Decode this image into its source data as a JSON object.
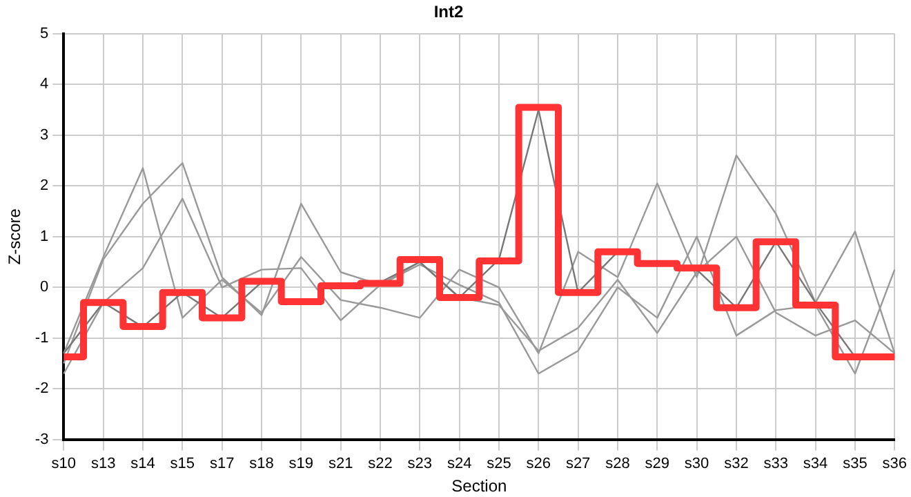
{
  "chart_data": {
    "type": "line",
    "title": "Int2",
    "xlabel": "Section",
    "ylabel": "Z-score",
    "categories": [
      "s10",
      "s13",
      "s14",
      "s15",
      "s17",
      "s18",
      "s19",
      "s21",
      "s22",
      "s23",
      "s24",
      "s25",
      "s26",
      "s27",
      "s28",
      "s29",
      "s30",
      "s32",
      "s33",
      "s34",
      "s35",
      "s36"
    ],
    "ylim": [
      -3,
      5
    ],
    "yticks": [
      -3,
      -2,
      -1,
      0,
      1,
      2,
      3,
      4,
      5
    ],
    "grid": true,
    "legend": false,
    "marker": "none",
    "series": [
      {
        "color": "#999999",
        "values": [
          -1.3,
          0.6,
          2.35,
          -0.6,
          0.15,
          -0.5,
          0.6,
          -0.25,
          -0.4,
          -0.6,
          0.35,
          0.0,
          -1.3,
          0.7,
          0.2,
          2.05,
          0.2,
          2.6,
          1.45,
          -0.3,
          1.1,
          -1.3
        ]
      },
      {
        "color": "#999999",
        "values": [
          -1.5,
          0.55,
          1.65,
          2.45,
          0.2,
          -0.55,
          1.65,
          0.3,
          0.05,
          0.45,
          0.05,
          -0.3,
          -1.7,
          -1.25,
          0.0,
          -0.6,
          1.0,
          -0.95,
          -0.45,
          -0.35,
          -1.7,
          0.35
        ]
      },
      {
        "color": "#999999",
        "values": [
          -1.7,
          -0.3,
          0.38,
          1.75,
          0.0,
          0.35,
          0.38,
          -0.65,
          0.05,
          0.5,
          -0.2,
          -0.35,
          -1.25,
          -0.8,
          0.15,
          -0.9,
          0.3,
          1.0,
          -0.5,
          -0.95,
          -0.65,
          -1.3
        ]
      },
      {
        "color": "#777777",
        "values": [
          -1.3,
          -0.3,
          -0.78,
          -0.1,
          -0.6,
          0.1,
          null,
          null,
          0.1,
          0.5,
          -0.2,
          0.55,
          3.5,
          -0.1,
          0.7,
          null,
          0.35,
          -0.4,
          0.9,
          -0.3,
          -1.37,
          -1.37
        ]
      },
      {
        "type": "step",
        "color": "#ff3333",
        "values": [
          -1.37,
          -0.3,
          -0.77,
          -0.1,
          -0.6,
          0.12,
          -0.28,
          0.03,
          0.08,
          0.55,
          -0.2,
          0.52,
          3.55,
          -0.1,
          0.7,
          0.47,
          0.38,
          -0.4,
          0.9,
          -0.35,
          -1.37,
          -1.37
        ]
      }
    ]
  }
}
